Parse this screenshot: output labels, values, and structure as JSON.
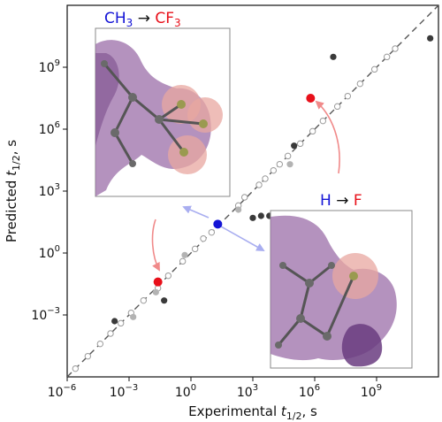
{
  "chart_data": {
    "type": "scatter",
    "log_scale": true,
    "xlabel": "Experimental t1/2, s",
    "ylabel": "Predicted t1/2, s",
    "xlim_log10": [
      -6,
      12
    ],
    "ylim_log10": [
      -6,
      12
    ],
    "x_ticks_log10": [
      -6,
      -3,
      0,
      3,
      6,
      9
    ],
    "y_ticks_log10": [
      -3,
      0,
      3,
      6,
      9
    ],
    "x_tick_labels": [
      {
        "base": "10",
        "exp": "−6"
      },
      {
        "base": "10",
        "exp": "−3"
      },
      {
        "base": "10",
        "exp": "0"
      },
      {
        "base": "10",
        "exp": "3"
      },
      {
        "base": "10",
        "exp": "6"
      },
      {
        "base": "10",
        "exp": "9"
      }
    ],
    "y_tick_labels": [
      {
        "base": "10",
        "exp": "−3"
      },
      {
        "base": "10",
        "exp": "0"
      },
      {
        "base": "10",
        "exp": "3"
      },
      {
        "base": "10",
        "exp": "6"
      },
      {
        "base": "10",
        "exp": "9"
      }
    ],
    "parity_line": {
      "style": "dashed",
      "color": "#555555"
    },
    "series": [
      {
        "marker": "open-circle",
        "color": "#9a9a9a",
        "points_log10": [
          [
            -5.6,
            -5.6
          ],
          [
            -5.0,
            -5.0
          ],
          [
            -4.4,
            -4.4
          ],
          [
            -3.9,
            -3.9
          ],
          [
            -3.4,
            -3.4
          ],
          [
            -2.9,
            -2.9
          ],
          [
            -2.3,
            -2.3
          ],
          [
            -1.6,
            -1.7
          ],
          [
            -1.1,
            -1.1
          ],
          [
            -0.4,
            -0.4
          ],
          [
            0.2,
            0.2
          ],
          [
            0.6,
            0.7
          ],
          [
            1.0,
            1.0
          ],
          [
            2.3,
            2.3
          ],
          [
            2.6,
            2.7
          ],
          [
            3.3,
            3.3
          ],
          [
            3.6,
            3.6
          ],
          [
            4.0,
            4.0
          ],
          [
            4.3,
            4.3
          ],
          [
            4.7,
            4.7
          ],
          [
            5.3,
            5.3
          ],
          [
            5.9,
            5.9
          ],
          [
            6.4,
            6.4
          ],
          [
            7.1,
            7.1
          ],
          [
            7.6,
            7.6
          ],
          [
            8.2,
            8.2
          ],
          [
            8.9,
            8.9
          ],
          [
            9.5,
            9.5
          ],
          [
            9.9,
            9.9
          ]
        ]
      },
      {
        "marker": "filled-circle",
        "color": "#3a3a3a",
        "points_log10": [
          [
            -3.7,
            -3.3
          ],
          [
            -1.3,
            -2.3
          ],
          [
            3.0,
            1.7
          ],
          [
            3.4,
            1.8
          ],
          [
            3.8,
            1.8
          ],
          [
            5.0,
            5.2
          ],
          [
            6.9,
            9.5
          ],
          [
            11.6,
            10.4
          ]
        ]
      },
      {
        "marker": "filled-circle",
        "color": "#b3b3b3",
        "points_log10": [
          [
            -2.8,
            -3.1
          ],
          [
            -1.7,
            -1.9
          ],
          [
            -0.3,
            -0.1
          ],
          [
            2.3,
            2.1
          ],
          [
            4.8,
            4.3
          ]
        ]
      },
      {
        "marker": "filled-circle",
        "color": "#e8101a",
        "points_log10": [
          [
            -1.6,
            -1.4
          ],
          [
            5.8,
            7.5
          ]
        ]
      },
      {
        "marker": "filled-circle",
        "color": "#1414d6",
        "points_log10": [
          [
            1.3,
            1.4
          ]
        ]
      }
    ],
    "annotations": [
      {
        "text_parts": [
          {
            "t": "CH",
            "c": "#1414d6"
          },
          {
            "t": "3",
            "c": "#1414d6",
            "sub": true
          },
          {
            "t": " → ",
            "c": "#111111"
          },
          {
            "t": "CF",
            "c": "#e8101a"
          },
          {
            "t": "3",
            "c": "#e8101a",
            "sub": true
          }
        ],
        "placement": "upper-left inset"
      },
      {
        "text_parts": [
          {
            "t": "H",
            "c": "#1414d6"
          },
          {
            "t": " → ",
            "c": "#111111"
          },
          {
            "t": "F",
            "c": "#e8101a"
          }
        ],
        "placement": "lower-right inset"
      }
    ],
    "grid": false,
    "legend": "none"
  },
  "colors": {
    "molecule_surface": "#9b6ea8",
    "molecule_surface_dark": "#7b4f8c",
    "fluorine_sphere": "#e8a7a0",
    "red_arrow": "#f08a8a",
    "blue_arrow": "#a9aef0"
  },
  "icons": [
    "molecule-inset-ch3-cf3",
    "molecule-inset-h-f"
  ]
}
